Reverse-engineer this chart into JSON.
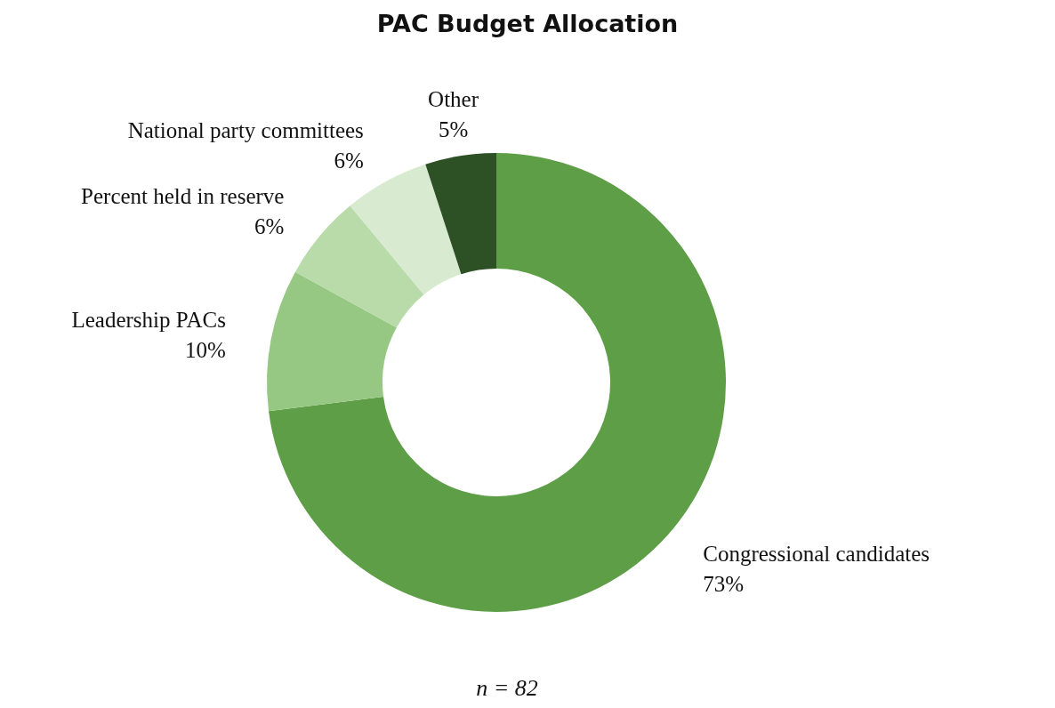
{
  "chart_data": {
    "type": "donut",
    "title": "PAC Budget Allocation",
    "categories": [
      "Congressional candidates",
      "Leadership PACs",
      "Percent held in reserve",
      "National party committees",
      "Other"
    ],
    "values": [
      73,
      10,
      6,
      6,
      5
    ],
    "colors": [
      "#5e9e47",
      "#97c883",
      "#b8dba9",
      "#d8ebd0",
      "#2d5125"
    ],
    "value_labels": [
      "73%",
      "10%",
      "6%",
      "6%",
      "5%"
    ],
    "annotations": [
      "n = 82"
    ]
  }
}
